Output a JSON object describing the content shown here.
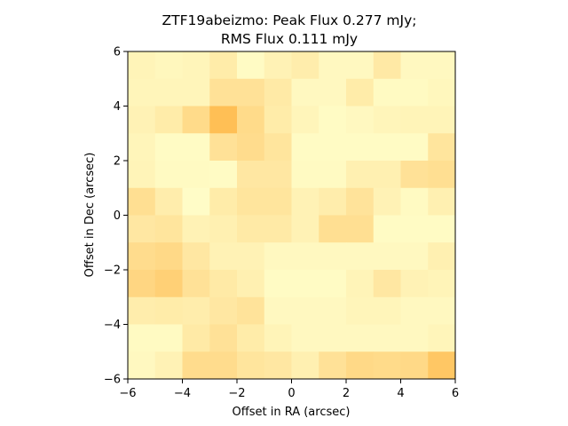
{
  "chart_data": {
    "type": "heatmap",
    "title_lines": [
      "ZTF19abeizmo: Peak Flux 0.277 mJy;",
      "RMS Flux 0.111 mJy"
    ],
    "xlabel": "Offset in RA (arcsec)",
    "ylabel": "Offset in Dec (arcsec)",
    "xlim": [
      -6,
      6
    ],
    "ylim": [
      -6,
      6
    ],
    "xticks": [
      -6,
      -4,
      -2,
      0,
      2,
      4,
      6
    ],
    "yticks": [
      -6,
      -4,
      -2,
      0,
      2,
      4,
      6
    ],
    "xtick_labels": [
      "−6",
      "−4",
      "−2",
      "0",
      "2",
      "4",
      "6"
    ],
    "ytick_labels": [
      "−6",
      "−4",
      "−2",
      "0",
      "2",
      "4",
      "6"
    ],
    "colormap": "YlOrBr",
    "colormap_stops": [
      "#ffffcc",
      "#fff4b8",
      "#ffe39a",
      "#ffd27a",
      "#ffbf55",
      "#ffad3a"
    ],
    "grid_note": "12 x 12 pixel cutout, rows listed from top (Dec +6) to bottom (Dec -6), values are relative intensity 0-1",
    "values": [
      [
        0.2,
        0.15,
        0.18,
        0.3,
        0.08,
        0.22,
        0.28,
        0.12,
        0.12,
        0.33,
        0.12,
        0.12
      ],
      [
        0.18,
        0.18,
        0.18,
        0.42,
        0.42,
        0.32,
        0.12,
        0.12,
        0.3,
        0.1,
        0.1,
        0.15
      ],
      [
        0.22,
        0.3,
        0.5,
        0.8,
        0.5,
        0.3,
        0.18,
        0.08,
        0.12,
        0.18,
        0.2,
        0.2
      ],
      [
        0.18,
        0.08,
        0.08,
        0.42,
        0.48,
        0.38,
        0.08,
        0.08,
        0.08,
        0.08,
        0.08,
        0.38
      ],
      [
        0.2,
        0.1,
        0.1,
        0.08,
        0.35,
        0.35,
        0.1,
        0.1,
        0.25,
        0.25,
        0.42,
        0.45
      ],
      [
        0.45,
        0.28,
        0.05,
        0.3,
        0.38,
        0.38,
        0.22,
        0.28,
        0.4,
        0.22,
        0.1,
        0.25
      ],
      [
        0.35,
        0.38,
        0.22,
        0.25,
        0.32,
        0.32,
        0.22,
        0.45,
        0.45,
        0.08,
        0.08,
        0.08
      ],
      [
        0.48,
        0.52,
        0.35,
        0.22,
        0.22,
        0.12,
        0.12,
        0.12,
        0.12,
        0.12,
        0.12,
        0.25
      ],
      [
        0.55,
        0.62,
        0.42,
        0.32,
        0.25,
        0.08,
        0.08,
        0.08,
        0.2,
        0.35,
        0.22,
        0.2
      ],
      [
        0.28,
        0.3,
        0.28,
        0.35,
        0.4,
        0.12,
        0.12,
        0.12,
        0.18,
        0.18,
        0.12,
        0.12
      ],
      [
        0.1,
        0.1,
        0.32,
        0.42,
        0.3,
        0.2,
        0.12,
        0.12,
        0.12,
        0.12,
        0.12,
        0.18
      ],
      [
        0.12,
        0.22,
        0.48,
        0.48,
        0.38,
        0.35,
        0.25,
        0.42,
        0.52,
        0.5,
        0.52,
        0.72
      ]
    ]
  }
}
